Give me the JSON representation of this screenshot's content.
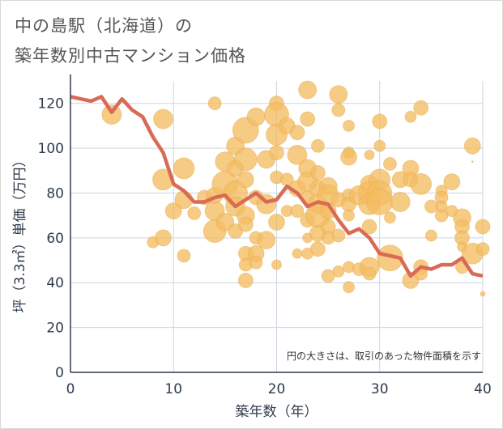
{
  "title": {
    "line1": "中の島駅（北海道）の",
    "line2": "築年数別中古マンション価格"
  },
  "colors": {
    "bubble": "#f3bd62",
    "bubble_stroke": "#e4a84a",
    "line": "#d96a55",
    "grid": "#ccd6e0",
    "text": "#2e3b4b"
  },
  "chart_data": {
    "type": "scatter",
    "xlabel": "築年数（年）",
    "ylabel": "坪（3.3㎡）単価（万円）",
    "xlim": [
      0,
      40
    ],
    "ylim": [
      0,
      130
    ],
    "x_ticks": [
      0,
      10,
      20,
      30,
      40
    ],
    "y_ticks": [
      0,
      20,
      40,
      60,
      80,
      100,
      120
    ],
    "grid": true,
    "annotation": "円の大きさは、取引のあった物件面積を示す",
    "series": [
      {
        "type": "line",
        "x": [
          0,
          1,
          2,
          3,
          4,
          5,
          6,
          7,
          8,
          9,
          10,
          11,
          12,
          13,
          14,
          15,
          16,
          17,
          18,
          19,
          20,
          21,
          22,
          23,
          24,
          25,
          26,
          27,
          28,
          29,
          30,
          31,
          32,
          33,
          34,
          35,
          36,
          37,
          38,
          39,
          40
        ],
        "y": [
          123,
          122,
          121,
          123,
          116,
          122,
          117,
          114,
          105,
          98,
          84,
          81,
          76,
          76,
          78,
          79,
          74,
          77,
          80,
          76,
          77,
          83,
          80,
          74,
          76,
          75,
          68,
          62,
          64,
          60,
          53,
          52,
          51,
          43,
          47,
          46,
          48,
          48,
          51,
          44,
          43
        ]
      },
      {
        "type": "bubble",
        "points": [
          {
            "x": 4,
            "y": 115,
            "s": 12
          },
          {
            "x": 9,
            "y": 113,
            "s": 12
          },
          {
            "x": 9,
            "y": 86,
            "s": 13
          },
          {
            "x": 11,
            "y": 91,
            "s": 13
          },
          {
            "x": 10,
            "y": 72,
            "s": 10
          },
          {
            "x": 11,
            "y": 77,
            "s": 11
          },
          {
            "x": 8,
            "y": 58,
            "s": 7
          },
          {
            "x": 9,
            "y": 60,
            "s": 10
          },
          {
            "x": 11,
            "y": 52,
            "s": 8
          },
          {
            "x": 12,
            "y": 71,
            "s": 8
          },
          {
            "x": 13,
            "y": 78,
            "s": 9
          },
          {
            "x": 14,
            "y": 120,
            "s": 8
          },
          {
            "x": 14,
            "y": 63,
            "s": 14
          },
          {
            "x": 14,
            "y": 72,
            "s": 12
          },
          {
            "x": 14,
            "y": 79,
            "s": 10
          },
          {
            "x": 15,
            "y": 94,
            "s": 12
          },
          {
            "x": 15,
            "y": 84,
            "s": 16
          },
          {
            "x": 15,
            "y": 67,
            "s": 11
          },
          {
            "x": 16,
            "y": 101,
            "s": 11
          },
          {
            "x": 16,
            "y": 91,
            "s": 10
          },
          {
            "x": 16,
            "y": 80,
            "s": 15
          },
          {
            "x": 16,
            "y": 74,
            "s": 12
          },
          {
            "x": 16,
            "y": 63,
            "s": 9
          },
          {
            "x": 17,
            "y": 108,
            "s": 16
          },
          {
            "x": 17,
            "y": 95,
            "s": 14
          },
          {
            "x": 17,
            "y": 86,
            "s": 10
          },
          {
            "x": 17,
            "y": 70,
            "s": 11
          },
          {
            "x": 17,
            "y": 66,
            "s": 9
          },
          {
            "x": 17,
            "y": 53,
            "s": 9
          },
          {
            "x": 17,
            "y": 48,
            "s": 8
          },
          {
            "x": 17,
            "y": 41,
            "s": 9
          },
          {
            "x": 18,
            "y": 114,
            "s": 11
          },
          {
            "x": 18,
            "y": 78,
            "s": 9
          },
          {
            "x": 18,
            "y": 60,
            "s": 8
          },
          {
            "x": 18,
            "y": 53,
            "s": 10
          },
          {
            "x": 18,
            "y": 49,
            "s": 8
          },
          {
            "x": 19,
            "y": 95,
            "s": 11
          },
          {
            "x": 19,
            "y": 75,
            "s": 12
          },
          {
            "x": 19,
            "y": 59,
            "s": 11
          },
          {
            "x": 20,
            "y": 120,
            "s": 9
          },
          {
            "x": 20,
            "y": 115,
            "s": 15
          },
          {
            "x": 20,
            "y": 106,
            "s": 13
          },
          {
            "x": 20,
            "y": 98,
            "s": 9
          },
          {
            "x": 20,
            "y": 87,
            "s": 8
          },
          {
            "x": 20,
            "y": 67,
            "s": 10
          },
          {
            "x": 20,
            "y": 48,
            "s": 6
          },
          {
            "x": 21,
            "y": 110,
            "s": 10
          },
          {
            "x": 21,
            "y": 86,
            "s": 8
          },
          {
            "x": 21,
            "y": 72,
            "s": 7
          },
          {
            "x": 22,
            "y": 107,
            "s": 9
          },
          {
            "x": 22,
            "y": 97,
            "s": 12
          },
          {
            "x": 22,
            "y": 82,
            "s": 10
          },
          {
            "x": 22,
            "y": 72,
            "s": 8
          },
          {
            "x": 22,
            "y": 53,
            "s": 6
          },
          {
            "x": 23,
            "y": 126,
            "s": 11
          },
          {
            "x": 23,
            "y": 113,
            "s": 9
          },
          {
            "x": 23,
            "y": 91,
            "s": 11
          },
          {
            "x": 23,
            "y": 85,
            "s": 12
          },
          {
            "x": 23,
            "y": 78,
            "s": 8
          },
          {
            "x": 23,
            "y": 68,
            "s": 9
          },
          {
            "x": 23,
            "y": 60,
            "s": 6
          },
          {
            "x": 23,
            "y": 53,
            "s": 7
          },
          {
            "x": 24,
            "y": 101,
            "s": 8
          },
          {
            "x": 24,
            "y": 89,
            "s": 9
          },
          {
            "x": 24,
            "y": 82,
            "s": 10
          },
          {
            "x": 24,
            "y": 75,
            "s": 12
          },
          {
            "x": 24,
            "y": 70,
            "s": 15
          },
          {
            "x": 24,
            "y": 62,
            "s": 10
          },
          {
            "x": 24,
            "y": 55,
            "s": 9
          },
          {
            "x": 25,
            "y": 83,
            "s": 11
          },
          {
            "x": 25,
            "y": 79,
            "s": 13
          },
          {
            "x": 25,
            "y": 72,
            "s": 10
          },
          {
            "x": 25,
            "y": 65,
            "s": 9
          },
          {
            "x": 25,
            "y": 60,
            "s": 8
          },
          {
            "x": 25,
            "y": 43,
            "s": 8
          },
          {
            "x": 26,
            "y": 124,
            "s": 11
          },
          {
            "x": 26,
            "y": 117,
            "s": 8
          },
          {
            "x": 26,
            "y": 77,
            "s": 9
          },
          {
            "x": 26,
            "y": 61,
            "s": 8
          },
          {
            "x": 26,
            "y": 45,
            "s": 7
          },
          {
            "x": 27,
            "y": 110,
            "s": 7
          },
          {
            "x": 27,
            "y": 98,
            "s": 7
          },
          {
            "x": 27,
            "y": 96,
            "s": 10
          },
          {
            "x": 27,
            "y": 79,
            "s": 8
          },
          {
            "x": 27,
            "y": 75,
            "s": 9
          },
          {
            "x": 27,
            "y": 70,
            "s": 7
          },
          {
            "x": 27,
            "y": 47,
            "s": 7
          },
          {
            "x": 27,
            "y": 38,
            "s": 7
          },
          {
            "x": 28,
            "y": 79,
            "s": 12
          },
          {
            "x": 28,
            "y": 46,
            "s": 8
          },
          {
            "x": 29,
            "y": 97,
            "s": 6
          },
          {
            "x": 29,
            "y": 84,
            "s": 11
          },
          {
            "x": 29,
            "y": 80,
            "s": 14
          },
          {
            "x": 29,
            "y": 75,
            "s": 13
          },
          {
            "x": 29,
            "y": 65,
            "s": 9
          },
          {
            "x": 29,
            "y": 47,
            "s": 12
          },
          {
            "x": 29,
            "y": 44,
            "s": 8
          },
          {
            "x": 30,
            "y": 112,
            "s": 9
          },
          {
            "x": 30,
            "y": 101,
            "s": 7
          },
          {
            "x": 30,
            "y": 86,
            "s": 13
          },
          {
            "x": 30,
            "y": 80,
            "s": 15
          },
          {
            "x": 30,
            "y": 76,
            "s": 16
          },
          {
            "x": 31,
            "y": 93,
            "s": 8
          },
          {
            "x": 31,
            "y": 69,
            "s": 7
          },
          {
            "x": 31,
            "y": 51,
            "s": 16
          },
          {
            "x": 32,
            "y": 86,
            "s": 10
          },
          {
            "x": 32,
            "y": 76,
            "s": 12
          },
          {
            "x": 33,
            "y": 114,
            "s": 7
          },
          {
            "x": 33,
            "y": 91,
            "s": 10
          },
          {
            "x": 33,
            "y": 86,
            "s": 9
          },
          {
            "x": 33,
            "y": 41,
            "s": 10
          },
          {
            "x": 34,
            "y": 118,
            "s": 9
          },
          {
            "x": 34,
            "y": 84,
            "s": 13
          },
          {
            "x": 34,
            "y": 47,
            "s": 9
          },
          {
            "x": 34,
            "y": 44,
            "s": 8
          },
          {
            "x": 35,
            "y": 74,
            "s": 8
          },
          {
            "x": 35,
            "y": 61,
            "s": 7
          },
          {
            "x": 36,
            "y": 81,
            "s": 7
          },
          {
            "x": 36,
            "y": 78,
            "s": 8
          },
          {
            "x": 36,
            "y": 70,
            "s": 8
          },
          {
            "x": 36,
            "y": 74,
            "s": 7
          },
          {
            "x": 37,
            "y": 85,
            "s": 10
          },
          {
            "x": 37,
            "y": 72,
            "s": 7
          },
          {
            "x": 38,
            "y": 69,
            "s": 11
          },
          {
            "x": 38,
            "y": 65,
            "s": 9
          },
          {
            "x": 38,
            "y": 60,
            "s": 9
          },
          {
            "x": 38,
            "y": 56,
            "s": 6
          },
          {
            "x": 38,
            "y": 47,
            "s": 8
          },
          {
            "x": 39,
            "y": 101,
            "s": 10
          },
          {
            "x": 39,
            "y": 53,
            "s": 13
          },
          {
            "x": 40,
            "y": 65,
            "s": 9
          },
          {
            "x": 40,
            "y": 55,
            "s": 8
          },
          {
            "x": 40,
            "y": 35,
            "s": 3
          },
          {
            "x": 39,
            "y": 94,
            "s": 1
          }
        ]
      }
    ]
  }
}
